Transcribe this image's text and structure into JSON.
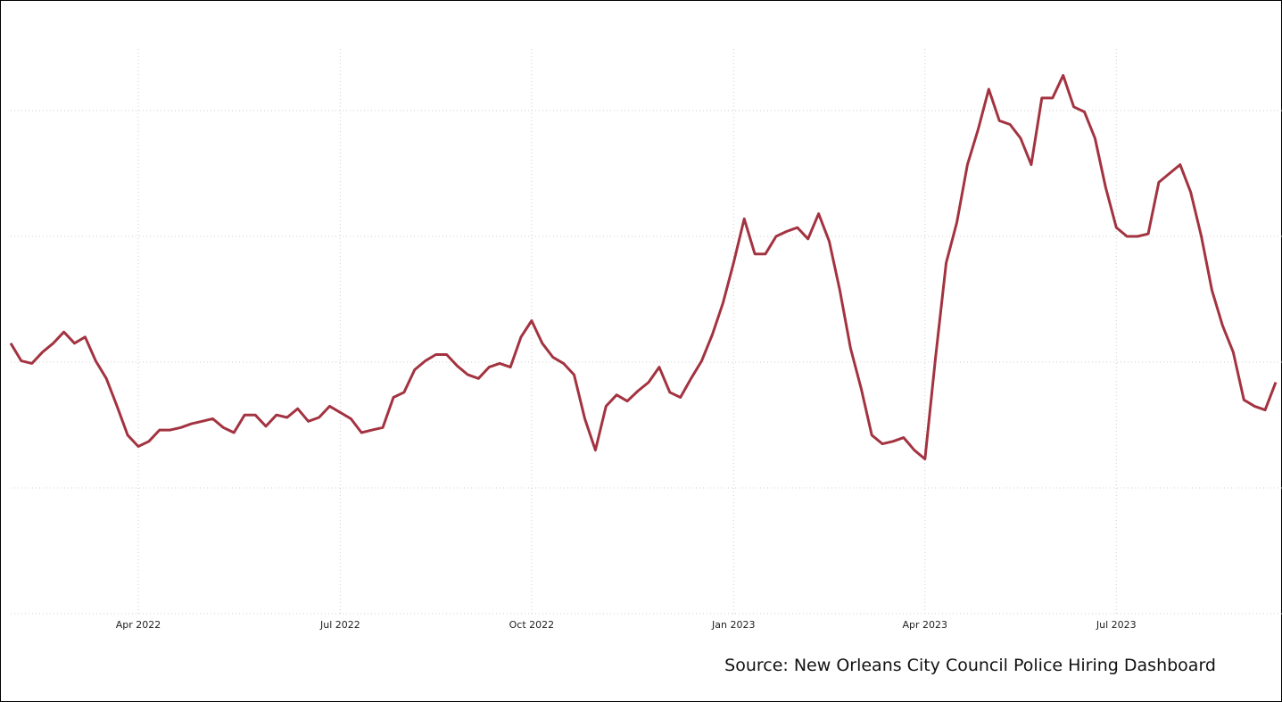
{
  "chart_data": {
    "type": "line",
    "categories": [
      null,
      null,
      null,
      null,
      null,
      null,
      null,
      null,
      null,
      null,
      null,
      null,
      "Apr 2022",
      null,
      null,
      null,
      null,
      null,
      null,
      null,
      null,
      null,
      null,
      null,
      null,
      null,
      null,
      null,
      null,
      null,
      null,
      "Jul 2022",
      null,
      null,
      null,
      null,
      null,
      null,
      null,
      null,
      null,
      null,
      null,
      null,
      null,
      null,
      null,
      null,
      null,
      "Oct 2022",
      null,
      null,
      null,
      null,
      null,
      null,
      null,
      null,
      null,
      null,
      null,
      null,
      null,
      null,
      null,
      null,
      null,
      null,
      "Jan 2023",
      null,
      null,
      null,
      null,
      null,
      null,
      null,
      null,
      null,
      null,
      null,
      null,
      null,
      null,
      null,
      null,
      null,
      "Apr 2023",
      null,
      null,
      null,
      null,
      null,
      null,
      null,
      null,
      null,
      null,
      null,
      null,
      null,
      null,
      null,
      null,
      null,
      "Jul 2023",
      null,
      null,
      null,
      null,
      null,
      null,
      null,
      null,
      null,
      null,
      null,
      null,
      null,
      null,
      null
    ],
    "series": [
      {
        "color": "#a33340",
        "values": [
          2.15,
          2.01,
          1.99,
          2.08,
          2.15,
          2.24,
          2.15,
          2.2,
          2.01,
          1.87,
          1.65,
          1.42,
          1.33,
          1.37,
          1.46,
          1.46,
          1.48,
          1.51,
          1.53,
          1.55,
          1.48,
          1.44,
          1.58,
          1.58,
          1.49,
          1.58,
          1.56,
          1.63,
          1.53,
          1.56,
          1.65,
          1.6,
          1.55,
          1.44,
          1.46,
          1.48,
          1.72,
          1.76,
          1.94,
          2.01,
          2.06,
          2.06,
          1.97,
          1.9,
          1.87,
          1.96,
          1.99,
          1.96,
          2.2,
          2.33,
          2.15,
          2.04,
          1.99,
          1.9,
          1.55,
          1.3,
          1.65,
          1.74,
          1.69,
          1.77,
          1.84,
          1.96,
          1.76,
          1.72,
          1.87,
          2.01,
          2.22,
          2.47,
          2.79,
          3.14,
          2.86,
          2.86,
          3.0,
          3.04,
          3.07,
          2.98,
          3.18,
          2.96,
          2.57,
          2.11,
          1.79,
          1.42,
          1.35,
          1.37,
          1.4,
          1.3,
          1.23,
          2.04,
          2.79,
          3.11,
          3.57,
          3.85,
          4.17,
          3.92,
          3.89,
          3.78,
          3.57,
          4.1,
          4.1,
          4.28,
          4.03,
          3.99,
          3.78,
          3.39,
          3.07,
          3.0,
          3.0,
          3.02,
          3.43,
          3.5,
          3.57,
          3.35,
          3.0,
          2.57,
          2.29,
          2.08,
          1.7,
          1.65,
          1.62,
          1.84
        ]
      }
    ],
    "ylim": [
      0,
      4.6
    ],
    "yticks": [
      0,
      1,
      2,
      3,
      4
    ],
    "grid": true,
    "source": "Source: New Orleans City Council Police Hiring Dashboard"
  }
}
